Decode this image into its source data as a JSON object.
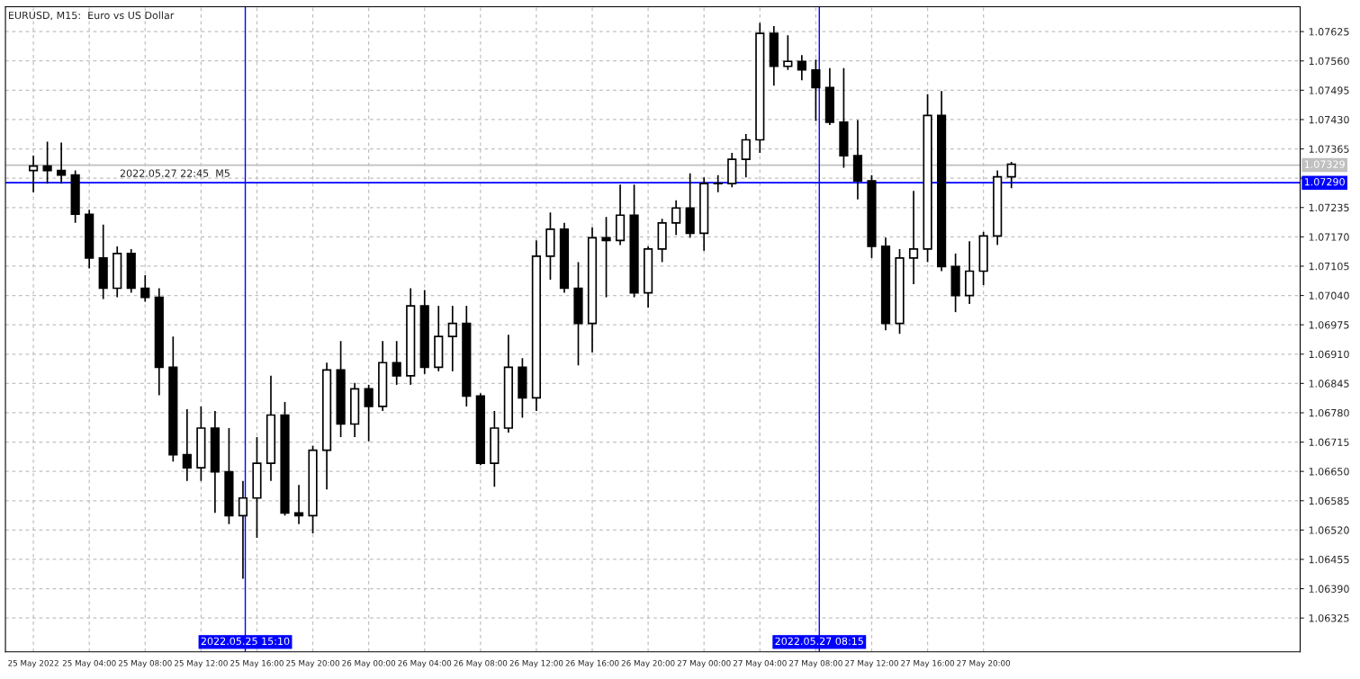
{
  "chart_data": {
    "type": "candlestick",
    "title": "EURUSD, M15:  Euro vs US Dollar",
    "x": [
      "2022-05-25T00:00",
      "2022-05-25T01:00",
      "2022-05-25T02:00",
      "2022-05-25T03:00",
      "2022-05-25T04:00",
      "2022-05-25T05:00",
      "2022-05-25T06:00",
      "2022-05-25T07:00",
      "2022-05-25T08:00",
      "2022-05-25T09:00",
      "2022-05-25T10:00",
      "2022-05-25T11:00",
      "2022-05-25T12:00",
      "2022-05-25T13:00",
      "2022-05-25T14:00",
      "2022-05-25T15:00",
      "2022-05-25T16:00",
      "2022-05-25T17:00",
      "2022-05-25T18:00",
      "2022-05-25T19:00",
      "2022-05-25T20:00",
      "2022-05-25T21:00",
      "2022-05-25T22:00",
      "2022-05-25T23:00",
      "2022-05-26T00:00",
      "2022-05-26T01:00",
      "2022-05-26T02:00",
      "2022-05-26T03:00",
      "2022-05-26T04:00",
      "2022-05-26T05:00",
      "2022-05-26T06:00",
      "2022-05-26T07:00",
      "2022-05-26T08:00",
      "2022-05-26T09:00",
      "2022-05-26T10:00",
      "2022-05-26T11:00",
      "2022-05-26T12:00",
      "2022-05-26T13:00",
      "2022-05-26T14:00",
      "2022-05-26T15:00",
      "2022-05-26T16:00",
      "2022-05-26T17:00",
      "2022-05-26T18:00",
      "2022-05-26T19:00",
      "2022-05-26T20:00",
      "2022-05-26T21:00",
      "2022-05-26T22:00",
      "2022-05-26T23:00",
      "2022-05-27T00:00",
      "2022-05-27T01:00",
      "2022-05-27T02:00",
      "2022-05-27T03:00",
      "2022-05-27T04:00",
      "2022-05-27T05:00",
      "2022-05-27T06:00",
      "2022-05-27T07:00",
      "2022-05-27T08:00",
      "2022-05-27T09:00",
      "2022-05-27T10:00",
      "2022-05-27T11:00",
      "2022-05-27T12:00",
      "2022-05-27T13:00",
      "2022-05-27T14:00",
      "2022-05-27T15:00",
      "2022-05-27T16:00",
      "2022-05-27T17:00",
      "2022-05-27T18:00",
      "2022-05-27T19:00",
      "2022-05-27T20:00",
      "2022-05-27T21:00",
      "2022-05-27T22:00"
    ],
    "ohlc": [
      [
        1.07317,
        1.0735,
        1.07269,
        1.07327
      ],
      [
        1.07327,
        1.07381,
        1.07288,
        1.07317
      ],
      [
        1.07317,
        1.07379,
        1.07288,
        1.07307
      ],
      [
        1.07307,
        1.07317,
        1.07201,
        1.0722
      ],
      [
        1.0722,
        1.0723,
        1.071,
        1.07123
      ],
      [
        1.07123,
        1.07197,
        1.07032,
        1.07056
      ],
      [
        1.07056,
        1.07149,
        1.07036,
        1.07133
      ],
      [
        1.07133,
        1.07143,
        1.07046,
        1.07056
      ],
      [
        1.07056,
        1.07085,
        1.07026,
        1.07036
      ],
      [
        1.07036,
        1.07056,
        1.06819,
        1.06881
      ],
      [
        1.06881,
        1.06949,
        1.06672,
        1.06687
      ],
      [
        1.06687,
        1.06788,
        1.06629,
        1.06658
      ],
      [
        1.06658,
        1.06794,
        1.06629,
        1.06746
      ],
      [
        1.06746,
        1.06784,
        1.06558,
        1.06649
      ],
      [
        1.06649,
        1.06746,
        1.06533,
        1.06552
      ],
      [
        1.06552,
        1.06629,
        1.06412,
        1.06591
      ],
      [
        1.06591,
        1.06726,
        1.06503,
        1.06668
      ],
      [
        1.06668,
        1.06862,
        1.06629,
        1.06775
      ],
      [
        1.06775,
        1.06804,
        1.06552,
        1.06558
      ],
      [
        1.06558,
        1.0662,
        1.06533,
        1.06552
      ],
      [
        1.06552,
        1.06707,
        1.06513,
        1.06697
      ],
      [
        1.06697,
        1.06891,
        1.0661,
        1.06875
      ],
      [
        1.06875,
        1.06939,
        1.06726,
        1.06755
      ],
      [
        1.06755,
        1.06846,
        1.06726,
        1.06833
      ],
      [
        1.06833,
        1.06842,
        1.06717,
        1.06794
      ],
      [
        1.06794,
        1.06939,
        1.06784,
        1.06891
      ],
      [
        1.06891,
        1.06939,
        1.06842,
        1.06862
      ],
      [
        1.06862,
        1.07056,
        1.06842,
        1.07017
      ],
      [
        1.07017,
        1.07052,
        1.06866,
        1.06881
      ],
      [
        1.06881,
        1.07017,
        1.06872,
        1.06949
      ],
      [
        1.06949,
        1.07017,
        1.06872,
        1.06978
      ],
      [
        1.06978,
        1.07017,
        1.06794,
        1.06817
      ],
      [
        1.06817,
        1.06823,
        1.06664,
        1.06668
      ],
      [
        1.06668,
        1.06784,
        1.06616,
        1.06746
      ],
      [
        1.06746,
        1.06953,
        1.06736,
        1.06881
      ],
      [
        1.06881,
        1.06901,
        1.06769,
        1.06813
      ],
      [
        1.06813,
        1.07162,
        1.06784,
        1.07127
      ],
      [
        1.07127,
        1.07224,
        1.07075,
        1.07187
      ],
      [
        1.07187,
        1.07201,
        1.07046,
        1.07056
      ],
      [
        1.07056,
        1.07114,
        1.06885,
        1.06978
      ],
      [
        1.06978,
        1.07191,
        1.06914,
        1.07168
      ],
      [
        1.07168,
        1.07214,
        1.07036,
        1.07162
      ],
      [
        1.07162,
        1.07286,
        1.07152,
        1.07218
      ],
      [
        1.07218,
        1.07286,
        1.07036,
        1.07046
      ],
      [
        1.07046,
        1.07149,
        1.07013,
        1.07143
      ],
      [
        1.07143,
        1.0721,
        1.07114,
        1.07201
      ],
      [
        1.07201,
        1.07251,
        1.07174,
        1.07234
      ],
      [
        1.07234,
        1.07311,
        1.07168,
        1.07178
      ],
      [
        1.07178,
        1.07302,
        1.07139,
        1.07288
      ],
      [
        1.07288,
        1.07307,
        1.07269,
        1.07288
      ],
      [
        1.07288,
        1.07356,
        1.0728,
        1.07342
      ],
      [
        1.07342,
        1.07398,
        1.07302,
        1.07385
      ],
      [
        1.07385,
        1.07644,
        1.07356,
        1.07621
      ],
      [
        1.07621,
        1.07637,
        1.07505,
        1.07548
      ],
      [
        1.07548,
        1.07617,
        1.0754,
        1.07559
      ],
      [
        1.07559,
        1.07573,
        1.07517,
        1.0754
      ],
      [
        1.0754,
        1.07563,
        1.07427,
        1.07501
      ],
      [
        1.07501,
        1.07544,
        1.07418,
        1.07424
      ],
      [
        1.07424,
        1.07544,
        1.07323,
        1.0735
      ],
      [
        1.0735,
        1.07429,
        1.07253,
        1.07294
      ],
      [
        1.07294,
        1.07307,
        1.07123,
        1.07149
      ],
      [
        1.07149,
        1.07168,
        1.06963,
        1.06978
      ],
      [
        1.06978,
        1.07143,
        1.06955,
        1.07123
      ],
      [
        1.07123,
        1.07272,
        1.07065,
        1.07143
      ],
      [
        1.07143,
        1.07486,
        1.07114,
        1.07439
      ],
      [
        1.07439,
        1.07493,
        1.07094,
        1.07104
      ],
      [
        1.07104,
        1.07133,
        1.07003,
        1.0704
      ],
      [
        1.0704,
        1.0716,
        1.07021,
        1.07094
      ],
      [
        1.07094,
        1.07181,
        1.07063,
        1.07172
      ],
      [
        1.07172,
        1.07317,
        1.07152,
        1.07303
      ],
      [
        1.07303,
        1.07336,
        1.07278,
        1.07331
      ]
    ],
    "xlim": [
      "2022-05-24T22:00",
      "2022-05-28T18:40"
    ],
    "xticks": [
      {
        "value": "2022-05-25T00:00",
        "label": "25 May 2022"
      },
      {
        "value": "2022-05-25T04:00",
        "label": "25 May 04:00"
      },
      {
        "value": "2022-05-25T08:00",
        "label": "25 May 08:00"
      },
      {
        "value": "2022-05-25T12:00",
        "label": "25 May 12:00"
      },
      {
        "value": "2022-05-25T16:00",
        "label": "25 May 16:00"
      },
      {
        "value": "2022-05-25T20:00",
        "label": "25 May 20:00"
      },
      {
        "value": "2022-05-26T00:00",
        "label": "26 May 00:00"
      },
      {
        "value": "2022-05-26T04:00",
        "label": "26 May 04:00"
      },
      {
        "value": "2022-05-26T08:00",
        "label": "26 May 08:00"
      },
      {
        "value": "2022-05-26T12:00",
        "label": "26 May 12:00"
      },
      {
        "value": "2022-05-26T16:00",
        "label": "26 May 16:00"
      },
      {
        "value": "2022-05-26T20:00",
        "label": "26 May 20:00"
      },
      {
        "value": "2022-05-27T00:00",
        "label": "27 May 00:00"
      },
      {
        "value": "2022-05-27T04:00",
        "label": "27 May 04:00"
      },
      {
        "value": "2022-05-27T08:00",
        "label": "27 May 08:00"
      },
      {
        "value": "2022-05-27T12:00",
        "label": "27 May 12:00"
      },
      {
        "value": "2022-05-27T16:00",
        "label": "27 May 16:00"
      },
      {
        "value": "2022-05-27T20:00",
        "label": "27 May 20:00"
      }
    ],
    "ylim": [
      1.0625,
      1.0768
    ],
    "yticks": [
      1.06325,
      {
        "value": 1.0639,
        "label": "1.06390"
      },
      1.06455,
      {
        "value": 1.0652,
        "label": "1.06520"
      },
      1.06585,
      {
        "value": 1.0665,
        "label": "1.06650"
      },
      1.06715,
      {
        "value": 1.0678,
        "label": "1.06780"
      },
      1.06845,
      {
        "value": 1.0691,
        "label": "1.06910"
      },
      1.06975,
      {
        "value": 1.0704,
        "label": "1.07040"
      },
      1.07105,
      {
        "value": 1.0717,
        "label": "1.07170"
      },
      1.07235,
      {
        "value": 1.073,
        "label": null
      },
      1.07365,
      {
        "value": 1.0743,
        "label": "1.07430"
      },
      1.07495,
      {
        "value": 1.0756,
        "label": "1.07560"
      },
      1.07625
    ],
    "ref_lines": [
      {
        "axis": "y",
        "value": 1.07329,
        "label": "1.07329",
        "color": "#c0c0c0"
      },
      {
        "axis": "y",
        "value": 1.0729,
        "label": "1.07290",
        "color": "#0000ff"
      },
      {
        "axis": "x",
        "value": "2022-05-25T15:10",
        "label": "2022.05.25 15:10",
        "color": "#0000ff"
      },
      {
        "axis": "x",
        "value": "2022-05-27T08:15",
        "label": "2022.05.27 08:15",
        "color": "#0000ff"
      }
    ],
    "annotations": [
      {
        "text": "2022.05.27 22:45  M5",
        "x": "2022-05-25T06:00",
        "y": 1.0729
      }
    ],
    "grid": true,
    "line_style": "dashed",
    "legend": false
  }
}
